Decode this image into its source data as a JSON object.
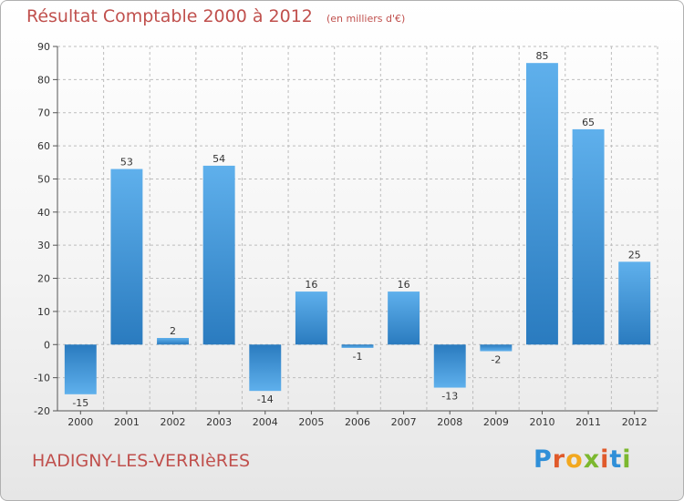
{
  "title": "Résultat Comptable 2000 à 2012",
  "unit": "(en milliers d'€)",
  "town": "HADIGNY-LES-VERRIèRES",
  "logo": "Proxiti",
  "colors": {
    "title": "#c0504d",
    "bar_light": "#5daae6",
    "bar_dark": "#2a7bbf"
  },
  "chart_data": {
    "type": "bar",
    "categories": [
      "2000",
      "2001",
      "2002",
      "2003",
      "2004",
      "2005",
      "2006",
      "2007",
      "2008",
      "2009",
      "2010",
      "2011",
      "2012"
    ],
    "values": [
      -15,
      53,
      2,
      54,
      -14,
      16,
      -1,
      16,
      -13,
      -2,
      85,
      65,
      25
    ],
    "ylim": [
      -20,
      90
    ],
    "yticks": [
      -20,
      -10,
      0,
      10,
      20,
      30,
      40,
      50,
      60,
      70,
      80,
      90
    ],
    "grid": true
  }
}
